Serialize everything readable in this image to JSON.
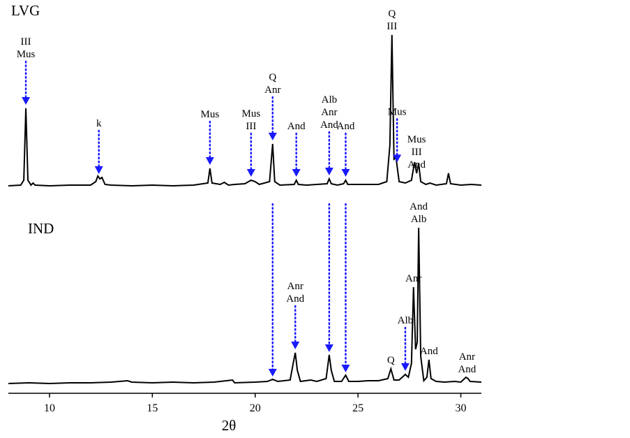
{
  "chart_data": {
    "type": "line",
    "xlabel": "2θ",
    "xlim": [
      8,
      31
    ],
    "xticks": [
      10,
      15,
      20,
      25,
      30
    ],
    "color": "#000000",
    "annotation_color": "#1a1aff",
    "links": [
      20.85,
      23.6,
      24.4
    ],
    "series": [
      {
        "name": "LVG",
        "x": [
          8.0,
          8.6,
          8.75,
          8.85,
          8.95,
          9.1,
          9.2,
          9.3,
          10,
          11,
          12,
          12.25,
          12.35,
          12.45,
          12.55,
          12.7,
          13,
          14,
          15,
          16,
          17,
          17.7,
          17.8,
          17.9,
          18.3,
          18.5,
          18.7,
          19,
          19.5,
          19.8,
          20.0,
          20.2,
          20.7,
          20.85,
          20.95,
          21.2,
          21.9,
          22.0,
          22.1,
          22.5,
          23.0,
          23.5,
          23.6,
          23.7,
          24.0,
          24.3,
          24.4,
          24.5,
          25,
          25.5,
          26,
          26.4,
          26.55,
          26.65,
          26.75,
          26.85,
          27.0,
          27.3,
          27.6,
          27.75,
          27.85,
          27.95,
          28.05,
          28.3,
          28.5,
          28.8,
          29.3,
          29.4,
          29.5,
          30,
          30.5,
          31
        ],
        "values": [
          2,
          3,
          10,
          113,
          10,
          3,
          6,
          3,
          2,
          3,
          3,
          8,
          16,
          12,
          14,
          4,
          3,
          2,
          3,
          2,
          3,
          6,
          27,
          6,
          4,
          7,
          3,
          4,
          5,
          10,
          8,
          4,
          8,
          62,
          8,
          3,
          4,
          10,
          4,
          3,
          4,
          5,
          12,
          5,
          3,
          5,
          10,
          4,
          4,
          4,
          4,
          8,
          60,
          218,
          40,
          42,
          8,
          6,
          10,
          36,
          20,
          34,
          8,
          4,
          6,
          3,
          5,
          20,
          5,
          3,
          4,
          3
        ],
        "annotations": [
          {
            "lines": [
              "III",
              "Mus"
            ],
            "x": 8.85,
            "arrow": true
          },
          {
            "lines": [
              "k"
            ],
            "x": 12.4,
            "arrow": true
          },
          {
            "lines": [
              "Mus"
            ],
            "x": 17.8,
            "arrow": true
          },
          {
            "lines": [
              "Mus",
              "III"
            ],
            "x": 19.8,
            "arrow": true
          },
          {
            "lines": [
              "Q",
              "Anr"
            ],
            "x": 20.85,
            "arrow": true
          },
          {
            "lines": [
              "And"
            ],
            "x": 22.0,
            "arrow": true
          },
          {
            "lines": [
              "Alb",
              "Anr",
              "And"
            ],
            "x": 23.6,
            "arrow": true
          },
          {
            "lines": [
              "And"
            ],
            "x": 24.4,
            "arrow": true
          },
          {
            "lines": [
              "Q",
              "III"
            ],
            "x": 26.65,
            "arrow": false
          },
          {
            "lines": [
              "Mus"
            ],
            "x": 26.9,
            "arrow": true
          },
          {
            "lines": [
              "Mus",
              "III",
              "And"
            ],
            "x": 27.85,
            "arrow": false
          }
        ]
      },
      {
        "name": "IND",
        "x": [
          8,
          9,
          10,
          11,
          12,
          13,
          13.8,
          14,
          15,
          16,
          17,
          18,
          18.9,
          19,
          20,
          20.6,
          20.85,
          21.1,
          21.7,
          21.85,
          21.95,
          22.05,
          22.2,
          22.7,
          23.0,
          23.45,
          23.6,
          23.7,
          23.85,
          24.2,
          24.4,
          24.55,
          25,
          25.5,
          26,
          26.45,
          26.6,
          26.75,
          27.0,
          27.3,
          27.45,
          27.6,
          27.7,
          27.8,
          27.88,
          27.95,
          28.05,
          28.2,
          28.35,
          28.45,
          28.55,
          28.8,
          29.2,
          29.7,
          30,
          30.25,
          30.35,
          30.45,
          31
        ],
        "values": [
          1,
          2,
          1,
          2,
          2,
          3,
          5,
          3,
          2,
          3,
          2,
          3,
          6,
          2,
          3,
          4,
          7,
          4,
          6,
          30,
          45,
          20,
          4,
          6,
          4,
          8,
          42,
          20,
          4,
          4,
          13,
          4,
          4,
          5,
          5,
          8,
          22,
          6,
          6,
          14,
          10,
          30,
          139,
          50,
          60,
          224,
          40,
          5,
          10,
          35,
          8,
          4,
          3,
          4,
          3,
          10,
          8,
          4,
          3
        ],
        "annotations": [
          {
            "lines": [
              "Anr",
              "And"
            ],
            "x": 21.95,
            "arrow": true
          },
          {
            "lines": [
              "Q"
            ],
            "x": 26.6,
            "arrow": false
          },
          {
            "lines": [
              "Alb"
            ],
            "x": 27.3,
            "arrow": true
          },
          {
            "lines": [
              "Anr"
            ],
            "x": 27.7,
            "arrow": false
          },
          {
            "lines": [
              "And",
              "Alb"
            ],
            "x": 27.95,
            "arrow": false
          },
          {
            "lines": [
              "And"
            ],
            "x": 28.45,
            "arrow": false
          },
          {
            "lines": [
              "Anr",
              "And"
            ],
            "x": 30.3,
            "arrow": false
          }
        ]
      }
    ]
  }
}
